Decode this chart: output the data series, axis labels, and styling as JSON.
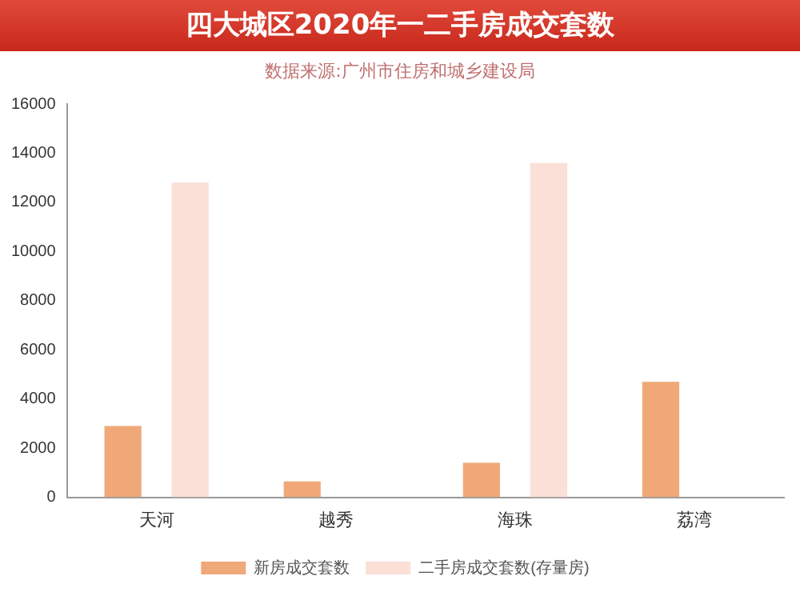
{
  "chart_data": {
    "type": "bar",
    "title": "四大城区2020年一二手房成交套数",
    "subtitle": "数据来源:广州市住房和城乡建设局",
    "categories": [
      "天河",
      "越秀",
      "海珠",
      "荔湾"
    ],
    "series": [
      {
        "name": "新房成交套数",
        "color": "#f0a878",
        "values": [
          2900,
          650,
          1400,
          4700
        ]
      },
      {
        "name": "二手房成交套数(存量房)",
        "color": "#fbe0d8",
        "values": [
          12800,
          null,
          13600,
          null
        ]
      }
    ],
    "ylim": [
      0,
      16000
    ],
    "yticks": [
      0,
      2000,
      4000,
      6000,
      8000,
      10000,
      12000,
      14000,
      16000
    ],
    "grid": false,
    "legend": "bottom"
  }
}
